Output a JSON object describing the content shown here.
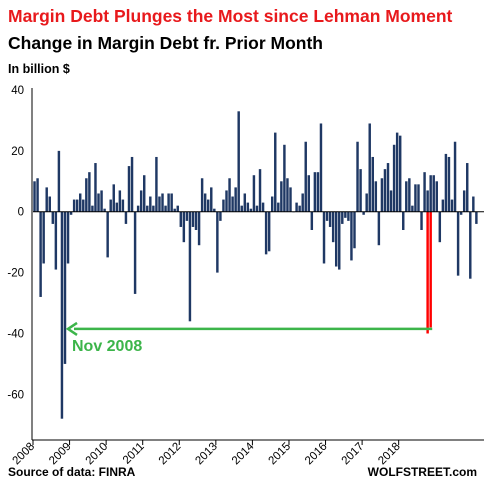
{
  "title": "Margin Debt Plunges the Most since Lehman Moment",
  "subtitle": "Change in Margin Debt fr. Prior Month",
  "units_label": "In billion $",
  "source": "Source of data: FINRA",
  "brand": "WOLFSTREET.com",
  "colors": {
    "title": "#e8191c",
    "bar": "#1f3864",
    "highlight": "#ff0000",
    "arrow": "#3cb54a",
    "axis": "#000000"
  },
  "chart_data": {
    "type": "bar",
    "ylim": [
      -75,
      40
    ],
    "yticks": [
      40,
      20,
      0,
      -20,
      -40,
      -60
    ],
    "xticks": [
      "2008",
      "2009",
      "2010",
      "2011",
      "2012",
      "2013",
      "2014",
      "2015",
      "2016",
      "2017",
      "2018"
    ],
    "start": "2008-01",
    "grid": false,
    "series": [
      {
        "values": [
          10,
          11,
          -28,
          -17,
          8,
          5,
          -4,
          -19,
          20,
          -68,
          -50,
          -17,
          -1,
          4,
          4,
          6,
          4,
          11,
          13,
          2,
          16,
          6,
          7,
          1,
          -15,
          4,
          9,
          3,
          7,
          4,
          -4,
          15,
          18,
          -27,
          2,
          7,
          12,
          2,
          5,
          2,
          18,
          5,
          6,
          2,
          6,
          6,
          1,
          2,
          -5,
          -10,
          -3,
          -36,
          -5,
          -6,
          -11,
          11,
          6,
          4,
          8,
          1,
          -20,
          -3,
          4,
          7,
          11,
          5,
          8,
          33,
          2,
          6,
          3,
          1,
          12,
          2,
          14,
          3,
          -14,
          -13,
          5,
          26,
          3,
          10,
          22,
          11,
          8,
          0,
          3,
          2,
          6,
          23,
          12,
          -6,
          13,
          13,
          29,
          -17,
          -3,
          -5,
          -10,
          -18,
          -19,
          -4,
          -2,
          -3,
          -16,
          -12,
          23,
          14,
          -1,
          6,
          29,
          18,
          10,
          -11,
          11,
          14,
          16,
          7,
          22,
          26,
          25,
          -6,
          10,
          11,
          2,
          9,
          9,
          -6,
          13,
          7,
          12,
          12,
          10,
          -10,
          4,
          19,
          18,
          4,
          23,
          -21,
          -1,
          7,
          16,
          -22,
          5,
          -4
        ],
        "color": "#1f3864"
      },
      {
        "start": "2018-10",
        "values": [
          -40,
          -38
        ],
        "color": "#ff0000"
      }
    ],
    "reference_line": {
      "value": -38.5,
      "from": "2008-11",
      "to": "2018-11"
    },
    "annotations": [
      {
        "text": "Nov 2008",
        "at": "2008-11"
      }
    ]
  }
}
